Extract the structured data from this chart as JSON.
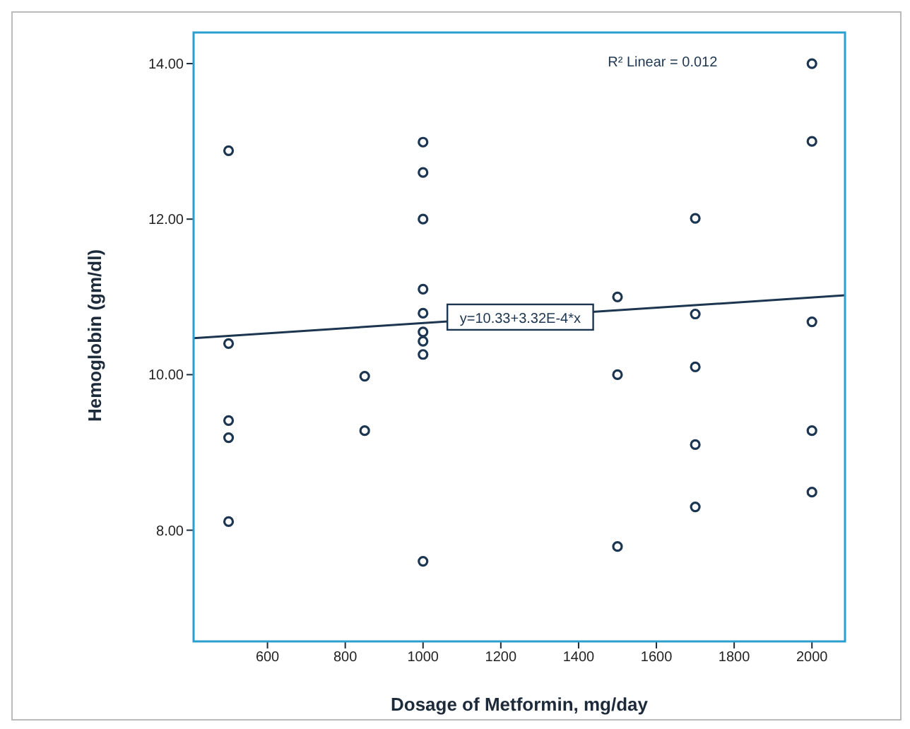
{
  "chart_data": {
    "type": "scatter",
    "xlabel": "Dosage of Metformin, mg/day",
    "ylabel": "Hemoglobin (gm/dl)",
    "xlim": [
      410,
      2085
    ],
    "xticks": [
      600,
      800,
      1000,
      1200,
      1400,
      1600,
      1800,
      2000
    ],
    "ylim": [
      6.57,
      14.4
    ],
    "yticks": [
      {
        "value": 8,
        "label": "8.00"
      },
      {
        "value": 10,
        "label": "10.00"
      },
      {
        "value": 12,
        "label": "12.00"
      },
      {
        "value": 14,
        "label": "14.00"
      }
    ],
    "grid": false,
    "legend": false,
    "marker": "circle",
    "annotations": [
      "R² Linear = 0.012",
      {
        "text": "y=10.33+3.32E-4*x",
        "x": 1250,
        "y": 10.74
      }
    ],
    "series": [
      {
        "color": "#1c3550",
        "x": [
          500,
          500,
          500,
          500,
          500,
          850,
          850,
          1000,
          1000,
          1000,
          1000,
          1000,
          1000,
          1000,
          1000,
          1000,
          1500,
          1500,
          1500,
          1700,
          1700,
          1700,
          1700,
          1700,
          2000,
          2000,
          2000,
          2000,
          2000
        ],
        "values": [
          12.88,
          10.4,
          9.41,
          9.19,
          8.11,
          9.98,
          9.28,
          12.99,
          12.6,
          12.0,
          11.1,
          10.79,
          10.55,
          10.43,
          10.26,
          7.6,
          11.0,
          10.0,
          7.79,
          12.01,
          10.78,
          10.1,
          9.1,
          8.3,
          14.0,
          13.0,
          10.68,
          9.28,
          8.49
        ]
      },
      {
        "type": "line",
        "color": "#1c3550",
        "x": [
          410,
          2085
        ],
        "values": [
          10.47,
          11.02
        ],
        "line_style": "solid",
        "marker": "none"
      }
    ]
  }
}
